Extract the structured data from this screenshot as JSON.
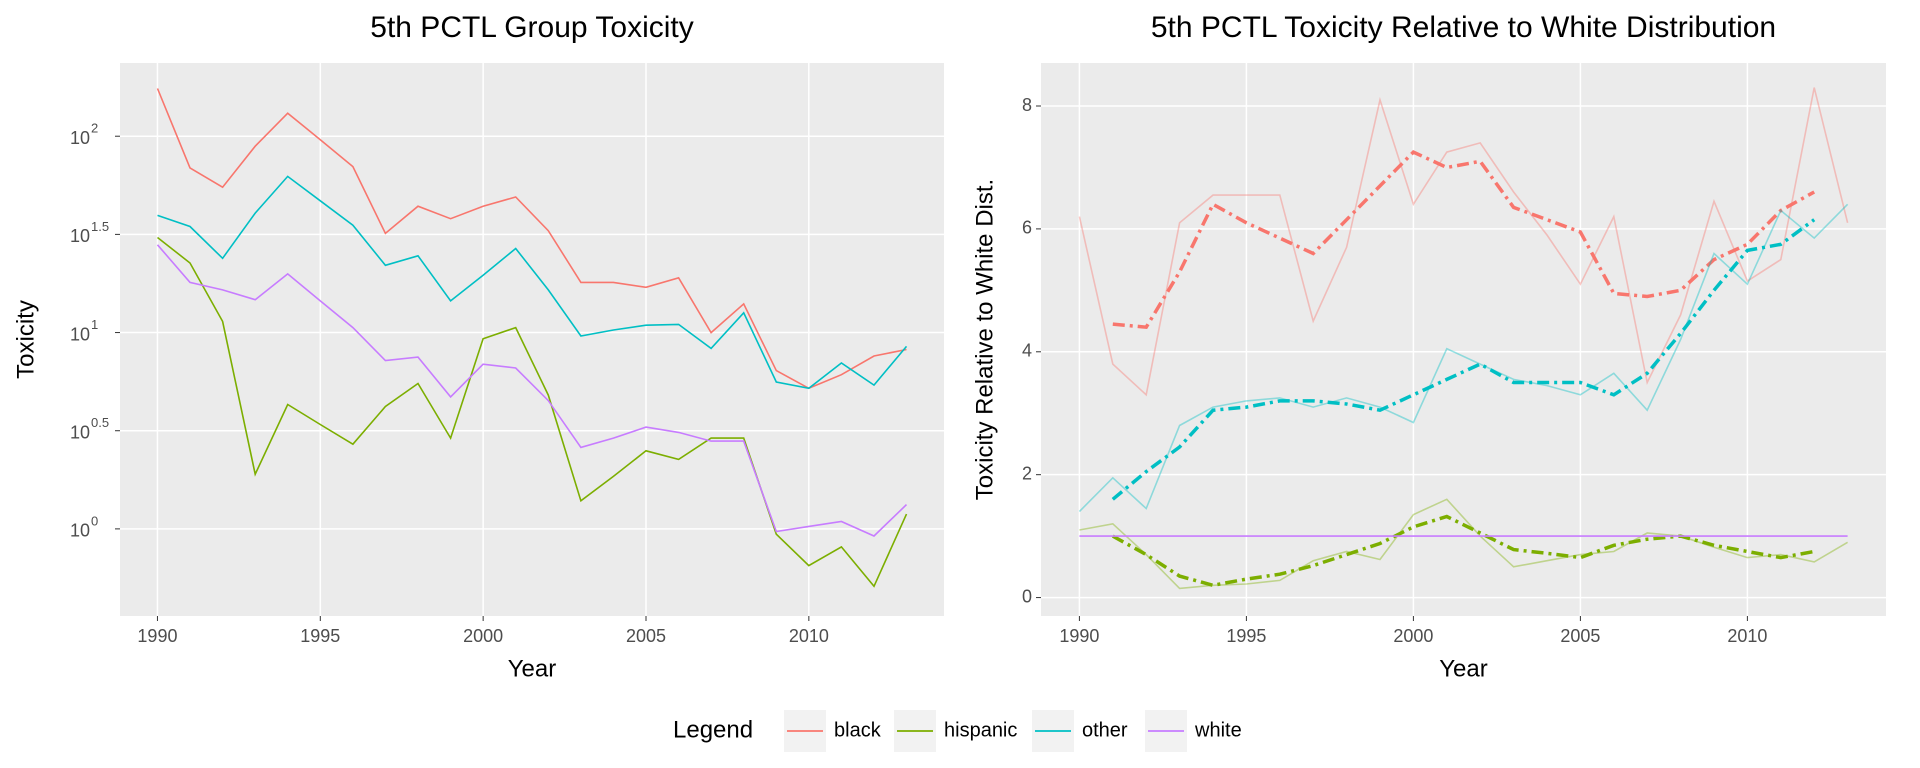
{
  "chart_data": [
    {
      "type": "line",
      "title": "5th PCTL Group Toxicity",
      "x_label": "Year",
      "y_label": "Toxicity",
      "log_y": true,
      "grid": true,
      "legend_position": "bottom",
      "legend_title": "Legend",
      "xlim": [
        1988.85,
        2014.15
      ],
      "xticks": [
        1990,
        1995,
        2000,
        2005,
        2010
      ],
      "ylim": [
        0.36,
        236
      ],
      "yticks": [
        {
          "value": 1,
          "label": "10",
          "exponent": "0"
        },
        {
          "value": 3.162,
          "label": "10",
          "exponent": "0.5"
        },
        {
          "value": 10,
          "label": "10",
          "exponent": "1"
        },
        {
          "value": 31.62,
          "label": "10",
          "exponent": "1.5"
        },
        {
          "value": 100,
          "label": "10",
          "exponent": "2"
        }
      ],
      "x": [
        1990,
        1991,
        1992,
        1993,
        1994,
        1995,
        1996,
        1997,
        1998,
        1999,
        2000,
        2001,
        2002,
        2003,
        2004,
        2005,
        2006,
        2007,
        2008,
        2009,
        2010,
        2011,
        2012,
        2013
      ],
      "series": [
        {
          "name": "black",
          "color": "#F8766D",
          "values": [
            175,
            69,
            55,
            89,
            131,
            96,
            70,
            32,
            44,
            38,
            44,
            49,
            33,
            18,
            18,
            17,
            19,
            10,
            14,
            6.4,
            5.2,
            6.1,
            7.6,
            8.2
          ]
        },
        {
          "name": "hispanic",
          "color": "#7CAE00",
          "values": [
            30.5,
            22.6,
            11.4,
            1.9,
            4.3,
            3.4,
            2.7,
            4.2,
            5.5,
            2.9,
            9.3,
            10.6,
            4.8,
            1.39,
            1.85,
            2.5,
            2.26,
            2.9,
            2.9,
            0.94,
            0.65,
            0.81,
            0.51,
            1.19
          ]
        },
        {
          "name": "other",
          "color": "#00BFC4",
          "values": [
            39.5,
            34.7,
            23.9,
            40.6,
            62.4,
            46.9,
            35.2,
            22,
            24.6,
            14.5,
            19.6,
            26.8,
            16.5,
            9.6,
            10.3,
            10.9,
            11,
            8.3,
            12.6,
            5.6,
            5.2,
            7,
            5.4,
            8.5
          ]
        },
        {
          "name": "white",
          "color": "#C77CFF",
          "values": [
            28,
            18,
            16.5,
            14.7,
            19.9,
            14.5,
            10.6,
            7.2,
            7.5,
            4.7,
            6.9,
            6.6,
            4.5,
            2.6,
            2.9,
            3.3,
            3.1,
            2.8,
            2.8,
            0.97,
            1.03,
            1.09,
            0.92,
            1.33
          ]
        }
      ]
    },
    {
      "type": "line",
      "title": "5th PCTL Toxicity Relative to White Distribution",
      "x_label": "Year",
      "y_label": "Toxicity Relative to White Dist.",
      "log_y": false,
      "grid": true,
      "xlim": [
        1988.85,
        2014.15
      ],
      "xticks": [
        1990,
        1995,
        2000,
        2005,
        2010
      ],
      "ylim": [
        -0.3,
        8.7
      ],
      "yticks": [
        0,
        2,
        4,
        6,
        8
      ],
      "x": [
        1990,
        1991,
        1992,
        1993,
        1994,
        1995,
        1996,
        1997,
        1998,
        1999,
        2000,
        2001,
        2002,
        2003,
        2004,
        2005,
        2006,
        2007,
        2008,
        2009,
        2010,
        2011,
        2012,
        2013
      ],
      "series": [
        {
          "name": "black",
          "color": "#F8766D",
          "values": [
            6.2,
            3.8,
            3.3,
            6.1,
            6.55,
            6.55,
            6.55,
            4.5,
            5.7,
            8.1,
            6.4,
            7.25,
            7.4,
            6.6,
            5.9,
            5.1,
            6.2,
            3.5,
            4.6,
            6.45,
            5.15,
            5.5,
            8.3,
            6.1
          ],
          "trend": [
            null,
            4.45,
            4.4,
            5.3,
            6.4,
            6.1,
            5.85,
            5.6,
            6.15,
            6.7,
            7.25,
            7.0,
            7.1,
            6.35,
            6.15,
            5.95,
            4.95,
            4.9,
            5.0,
            5.5,
            5.75,
            6.3,
            6.6,
            null
          ]
        },
        {
          "name": "hispanic",
          "color": "#7CAE00",
          "values": [
            1.1,
            1.2,
            0.7,
            0.15,
            0.2,
            0.22,
            0.28,
            0.6,
            0.75,
            0.62,
            1.35,
            1.6,
            1.0,
            0.5,
            0.6,
            0.7,
            0.75,
            1.05,
            1.0,
            0.82,
            0.65,
            0.7,
            0.58,
            0.9
          ],
          "trend": [
            null,
            1.0,
            0.7,
            0.35,
            0.2,
            0.3,
            0.38,
            0.52,
            0.7,
            0.88,
            1.15,
            1.32,
            1.05,
            0.78,
            0.72,
            0.65,
            0.85,
            0.95,
            1.0,
            0.85,
            0.75,
            0.65,
            0.75,
            null
          ]
        },
        {
          "name": "other",
          "color": "#00BFC4",
          "values": [
            1.4,
            1.95,
            1.45,
            2.8,
            3.1,
            3.2,
            3.25,
            3.1,
            3.25,
            3.1,
            2.85,
            4.05,
            3.8,
            3.55,
            3.45,
            3.3,
            3.65,
            3.05,
            4.2,
            5.6,
            5.1,
            6.3,
            5.85,
            6.4
          ],
          "trend": [
            null,
            1.6,
            2.05,
            2.45,
            3.05,
            3.1,
            3.2,
            3.2,
            3.15,
            3.05,
            3.3,
            3.55,
            3.8,
            3.5,
            3.5,
            3.5,
            3.3,
            3.65,
            4.3,
            5.0,
            5.65,
            5.75,
            6.15,
            null
          ]
        },
        {
          "name": "white",
          "color": "#C77CFF",
          "values": [
            1,
            1,
            1,
            1,
            1,
            1,
            1,
            1,
            1,
            1,
            1,
            1,
            1,
            1,
            1,
            1,
            1,
            1,
            1,
            1,
            1,
            1,
            1,
            1
          ]
        }
      ]
    }
  ]
}
